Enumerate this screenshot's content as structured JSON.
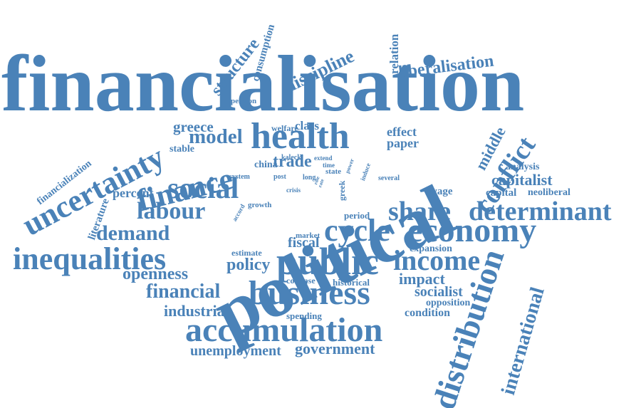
{
  "accent_color": "#4a82b8",
  "words": [
    "financialisation",
    "political",
    "health",
    "uncertainty",
    "finance",
    "social",
    "labour",
    "demand",
    "inequalities",
    "openness",
    "financial",
    "industrial",
    "accumulation",
    "unemployment",
    "government",
    "business",
    "public",
    "policy",
    "cycle",
    "economy",
    "share",
    "determinant",
    "income",
    "impact",
    "socialist",
    "opposition",
    "condition",
    "expansion",
    "fiscal",
    "historical",
    "collapse",
    "spending",
    "estimate",
    "market",
    "period",
    "growth",
    "accord",
    "crisis",
    "system",
    "post",
    "long",
    "state",
    "china",
    "trade",
    "kalecki",
    "extend",
    "time",
    "power",
    "induce",
    "several",
    "greek",
    "welfare",
    "class",
    "effect",
    "paper",
    "middle",
    "conflict",
    "analysis",
    "capitalist",
    "capital",
    "neoliberal",
    "wage",
    "distribution",
    "international",
    "greece",
    "model",
    "stable",
    "percent",
    "literature",
    "financialization",
    "structure",
    "consumption",
    "pension",
    "discipline",
    "relation",
    "liberalisation",
    "role",
    "rate"
  ]
}
